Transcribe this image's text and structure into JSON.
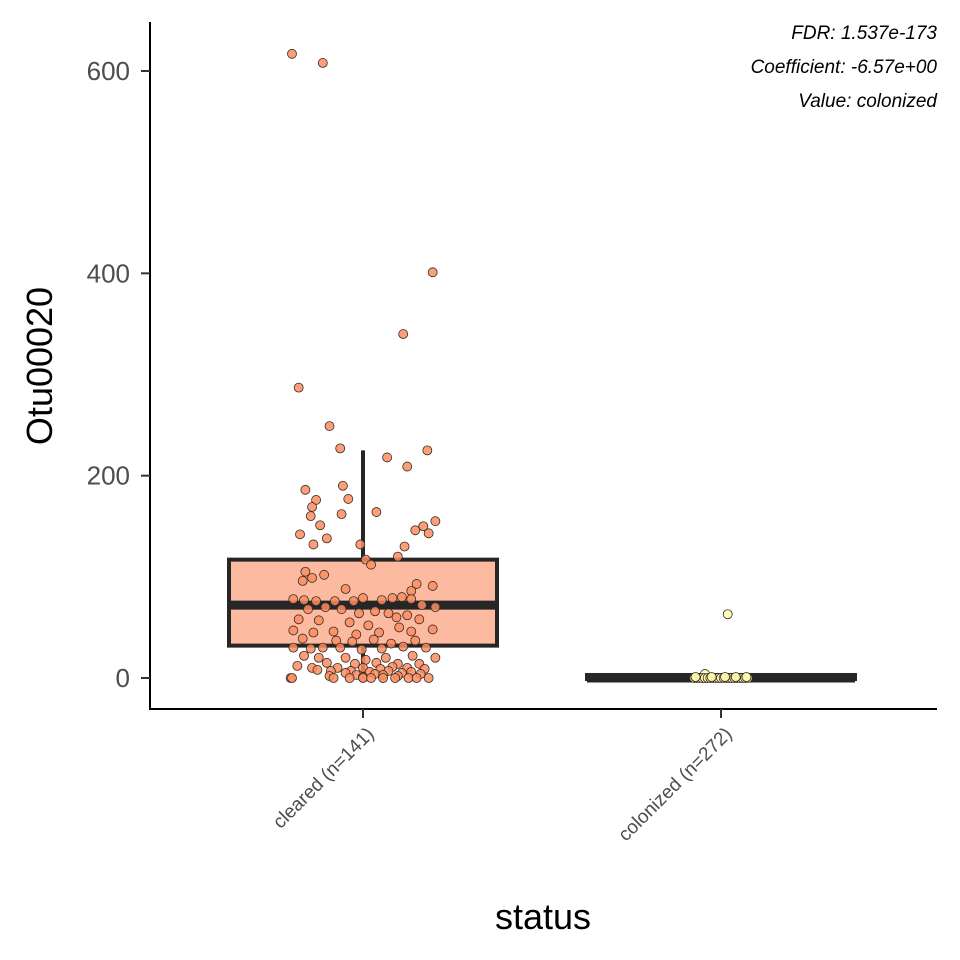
{
  "chart_data": {
    "type": "box",
    "xlabel": "status",
    "ylabel": "Otu00020",
    "ylim": [
      -30,
      650
    ],
    "yticks": [
      0,
      200,
      400,
      600
    ],
    "y_tick_labels": [
      "0",
      "200",
      "400",
      "600"
    ],
    "annotations": [
      "FDR: 1.537e-173",
      "Coefficient: -6.57e+00",
      "Value: colonized"
    ],
    "grid": false,
    "legend": "none",
    "groups": [
      {
        "category": "cleared (n=141)",
        "color": "#fcbba1",
        "point_color": "#fc8d62",
        "box": {
          "q1": 32,
          "median": 72,
          "q3": 117,
          "whisker_low": 0,
          "whisker_high": 225
        },
        "points": [
          {
            "jitter": -0.53,
            "y": 617
          },
          {
            "jitter": -0.3,
            "y": 608
          },
          {
            "jitter": 0.52,
            "y": 401
          },
          {
            "jitter": 0.3,
            "y": 340
          },
          {
            "jitter": -0.48,
            "y": 287
          },
          {
            "jitter": -0.25,
            "y": 249
          },
          {
            "jitter": -0.17,
            "y": 227
          },
          {
            "jitter": 0.48,
            "y": 225
          },
          {
            "jitter": 0.18,
            "y": 218
          },
          {
            "jitter": 0.33,
            "y": 209
          },
          {
            "jitter": -0.15,
            "y": 190
          },
          {
            "jitter": -0.43,
            "y": 186
          },
          {
            "jitter": -0.35,
            "y": 176
          },
          {
            "jitter": -0.11,
            "y": 177
          },
          {
            "jitter": -0.38,
            "y": 169
          },
          {
            "jitter": 0.1,
            "y": 164
          },
          {
            "jitter": -0.16,
            "y": 162
          },
          {
            "jitter": -0.39,
            "y": 160
          },
          {
            "jitter": 0.54,
            "y": 155
          },
          {
            "jitter": -0.32,
            "y": 151
          },
          {
            "jitter": 0.45,
            "y": 150
          },
          {
            "jitter": 0.39,
            "y": 146
          },
          {
            "jitter": -0.47,
            "y": 142
          },
          {
            "jitter": -0.27,
            "y": 138
          },
          {
            "jitter": 0.49,
            "y": 143
          },
          {
            "jitter": -0.37,
            "y": 132
          },
          {
            "jitter": 0.31,
            "y": 130
          },
          {
            "jitter": -0.02,
            "y": 132
          },
          {
            "jitter": 0.26,
            "y": 120
          },
          {
            "jitter": 0.02,
            "y": 117
          },
          {
            "jitter": -0.43,
            "y": 105
          },
          {
            "jitter": -0.29,
            "y": 102
          },
          {
            "jitter": -0.38,
            "y": 99
          },
          {
            "jitter": -0.45,
            "y": 96
          },
          {
            "jitter": 0.52,
            "y": 91
          },
          {
            "jitter": 0.4,
            "y": 93
          },
          {
            "jitter": 0.36,
            "y": 86
          },
          {
            "jitter": -0.13,
            "y": 88
          },
          {
            "jitter": 0.06,
            "y": 112
          },
          {
            "jitter": -0.52,
            "y": 78
          },
          {
            "jitter": -0.44,
            "y": 77
          },
          {
            "jitter": -0.35,
            "y": 76
          },
          {
            "jitter": -0.21,
            "y": 76
          },
          {
            "jitter": -0.07,
            "y": 76
          },
          {
            "jitter": 0.0,
            "y": 79
          },
          {
            "jitter": 0.14,
            "y": 77
          },
          {
            "jitter": 0.22,
            "y": 79
          },
          {
            "jitter": 0.29,
            "y": 80
          },
          {
            "jitter": 0.36,
            "y": 78
          },
          {
            "jitter": 0.44,
            "y": 72
          },
          {
            "jitter": 0.54,
            "y": 70
          },
          {
            "jitter": -0.41,
            "y": 68
          },
          {
            "jitter": -0.28,
            "y": 70
          },
          {
            "jitter": -0.16,
            "y": 68
          },
          {
            "jitter": -0.03,
            "y": 64
          },
          {
            "jitter": 0.09,
            "y": 66
          },
          {
            "jitter": 0.19,
            "y": 64
          },
          {
            "jitter": 0.25,
            "y": 60
          },
          {
            "jitter": 0.33,
            "y": 62
          },
          {
            "jitter": 0.42,
            "y": 58
          },
          {
            "jitter": -0.48,
            "y": 58
          },
          {
            "jitter": -0.33,
            "y": 57
          },
          {
            "jitter": -0.1,
            "y": 55
          },
          {
            "jitter": 0.04,
            "y": 52
          },
          {
            "jitter": 0.27,
            "y": 50
          },
          {
            "jitter": -0.52,
            "y": 47
          },
          {
            "jitter": -0.37,
            "y": 45
          },
          {
            "jitter": -0.22,
            "y": 46
          },
          {
            "jitter": -0.05,
            "y": 43
          },
          {
            "jitter": 0.12,
            "y": 45
          },
          {
            "jitter": 0.36,
            "y": 46
          },
          {
            "jitter": 0.52,
            "y": 48
          },
          {
            "jitter": -0.45,
            "y": 39
          },
          {
            "jitter": -0.2,
            "y": 37
          },
          {
            "jitter": -0.08,
            "y": 36
          },
          {
            "jitter": 0.08,
            "y": 38
          },
          {
            "jitter": 0.21,
            "y": 34
          },
          {
            "jitter": 0.39,
            "y": 37
          },
          {
            "jitter": -0.52,
            "y": 30
          },
          {
            "jitter": -0.39,
            "y": 29
          },
          {
            "jitter": -0.3,
            "y": 30
          },
          {
            "jitter": -0.17,
            "y": 30
          },
          {
            "jitter": -0.01,
            "y": 28
          },
          {
            "jitter": 0.14,
            "y": 29
          },
          {
            "jitter": 0.3,
            "y": 31
          },
          {
            "jitter": 0.47,
            "y": 30
          },
          {
            "jitter": -0.44,
            "y": 22
          },
          {
            "jitter": -0.33,
            "y": 20
          },
          {
            "jitter": -0.13,
            "y": 20
          },
          {
            "jitter": 0.02,
            "y": 18
          },
          {
            "jitter": 0.17,
            "y": 20
          },
          {
            "jitter": 0.37,
            "y": 22
          },
          {
            "jitter": 0.54,
            "y": 20
          },
          {
            "jitter": -0.27,
            "y": 15
          },
          {
            "jitter": -0.06,
            "y": 14
          },
          {
            "jitter": 0.1,
            "y": 15
          },
          {
            "jitter": 0.26,
            "y": 14
          },
          {
            "jitter": 0.42,
            "y": 14
          },
          {
            "jitter": -0.49,
            "y": 12
          },
          {
            "jitter": -0.38,
            "y": 10
          },
          {
            "jitter": -0.19,
            "y": 10
          },
          {
            "jitter": 0.0,
            "y": 10
          },
          {
            "jitter": 0.13,
            "y": 9
          },
          {
            "jitter": 0.22,
            "y": 11
          },
          {
            "jitter": 0.33,
            "y": 10
          },
          {
            "jitter": 0.46,
            "y": 9
          },
          {
            "jitter": -0.34,
            "y": 8
          },
          {
            "jitter": -0.24,
            "y": 7
          },
          {
            "jitter": -0.09,
            "y": 7
          },
          {
            "jitter": 0.05,
            "y": 6
          },
          {
            "jitter": 0.19,
            "y": 7
          },
          {
            "jitter": 0.36,
            "y": 6
          },
          {
            "jitter": -0.13,
            "y": 5
          },
          {
            "jitter": 0.09,
            "y": 4
          },
          {
            "jitter": 0.29,
            "y": 5
          },
          {
            "jitter": -0.05,
            "y": 3
          },
          {
            "jitter": 0.15,
            "y": 3
          },
          {
            "jitter": 0.43,
            "y": 4
          },
          {
            "jitter": -0.25,
            "y": 2
          },
          {
            "jitter": 0.0,
            "y": 1
          },
          {
            "jitter": 0.26,
            "y": 2
          },
          {
            "jitter": -0.54,
            "y": 0
          },
          {
            "jitter": -0.53,
            "y": 0
          },
          {
            "jitter": -0.22,
            "y": 0
          },
          {
            "jitter": -0.1,
            "y": 0
          },
          {
            "jitter": 0.0,
            "y": 0
          },
          {
            "jitter": 0.06,
            "y": 0
          },
          {
            "jitter": 0.15,
            "y": 0
          },
          {
            "jitter": 0.24,
            "y": 0
          },
          {
            "jitter": 0.34,
            "y": 0
          },
          {
            "jitter": 0.4,
            "y": 0
          },
          {
            "jitter": 0.49,
            "y": 0
          }
        ]
      },
      {
        "category": "colonized (n=272)",
        "color": "#ffffb2",
        "point_color": "#ffffb2",
        "box": {
          "q1": 0,
          "median": 0,
          "q3": 1,
          "whisker_low": 0,
          "whisker_high": 1
        },
        "points": [
          {
            "jitter": 0.05,
            "y": 63
          },
          {
            "jitter": -0.12,
            "y": 4
          },
          {
            "jitter": -0.2,
            "y": 0
          },
          {
            "jitter": -0.18,
            "y": 0
          },
          {
            "jitter": -0.16,
            "y": 0
          },
          {
            "jitter": -0.14,
            "y": 0
          },
          {
            "jitter": -0.12,
            "y": 0
          },
          {
            "jitter": -0.1,
            "y": 0
          },
          {
            "jitter": -0.08,
            "y": 0
          },
          {
            "jitter": -0.06,
            "y": 0
          },
          {
            "jitter": -0.04,
            "y": 0
          },
          {
            "jitter": -0.02,
            "y": 0
          },
          {
            "jitter": 0.0,
            "y": 0
          },
          {
            "jitter": 0.02,
            "y": 0
          },
          {
            "jitter": 0.04,
            "y": 0
          },
          {
            "jitter": 0.06,
            "y": 0
          },
          {
            "jitter": 0.08,
            "y": 0
          },
          {
            "jitter": 0.1,
            "y": 0
          },
          {
            "jitter": 0.12,
            "y": 0
          },
          {
            "jitter": 0.14,
            "y": 0
          },
          {
            "jitter": 0.16,
            "y": 0
          },
          {
            "jitter": 0.18,
            "y": 0
          },
          {
            "jitter": 0.2,
            "y": 0
          },
          {
            "jitter": -0.19,
            "y": 1
          },
          {
            "jitter": -0.07,
            "y": 1
          },
          {
            "jitter": 0.03,
            "y": 1
          },
          {
            "jitter": 0.11,
            "y": 1
          },
          {
            "jitter": 0.19,
            "y": 1
          }
        ]
      }
    ]
  }
}
